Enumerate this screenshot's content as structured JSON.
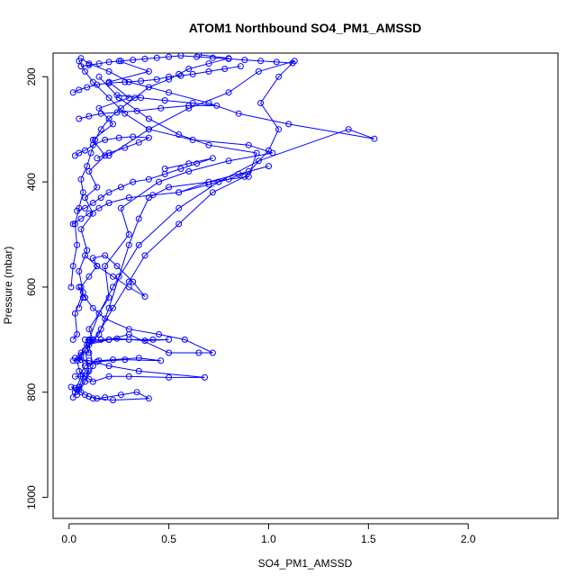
{
  "chart_data": {
    "type": "line",
    "title": "ATOM1 Northbound SO4_PM1_AMSSD",
    "xlabel": "SO4_PM1_AMSSD",
    "ylabel": "Pressure (mbar)",
    "xlim": [
      -0.08,
      2.45
    ],
    "ylim": [
      1040,
      155
    ],
    "y_inverted": true,
    "x_ticks": [
      "0.0",
      "0.5",
      "1.0",
      "1.5",
      "2.0"
    ],
    "x_tick_values": [
      0,
      0.5,
      1.0,
      1.5,
      2.0
    ],
    "y_ticks": [
      "200",
      "400",
      "600",
      "800",
      "1000"
    ],
    "y_tick_values": [
      200,
      400,
      600,
      800,
      1000
    ],
    "grid": false,
    "color": "#0000ff",
    "marker": "open-circle",
    "series": [
      {
        "x": [
          0.02,
          0.05,
          0.08,
          0.06,
          0.12,
          0.1,
          0.2,
          0.18,
          0.3,
          0.26,
          0.45,
          0.6,
          0.8,
          1.02,
          0.9,
          0.62,
          0.4,
          0.28,
          0.2,
          0.12,
          0.08,
          0.05
        ],
        "y": [
          810,
          790,
          760,
          730,
          700,
          680,
          620,
          560,
          500,
          450,
          400,
          380,
          360,
          345,
          330,
          320,
          300,
          270,
          240,
          210,
          190,
          170
        ]
      },
      {
        "x": [
          0.03,
          0.06,
          0.04,
          0.1,
          0.15,
          0.22,
          0.35,
          0.55,
          0.75,
          0.95,
          1.4,
          1.53,
          1.1,
          0.85,
          0.7,
          0.5,
          0.3,
          0.2,
          0.1,
          0.06
        ],
        "y": [
          800,
          770,
          740,
          700,
          650,
          600,
          520,
          450,
          400,
          360,
          300,
          318,
          290,
          270,
          250,
          230,
          210,
          190,
          175,
          165
        ]
      },
      {
        "x": [
          0.05,
          0.1,
          0.08,
          0.15,
          0.2,
          0.25,
          0.3,
          0.35,
          0.4,
          0.5,
          0.9,
          0.94,
          0.7,
          0.55,
          0.4,
          0.25,
          0.15
        ],
        "y": [
          795,
          760,
          720,
          690,
          640,
          580,
          520,
          470,
          430,
          410,
          390,
          345,
          330,
          310,
          280,
          240,
          200
        ]
      },
      {
        "x": [
          0.04,
          0.08,
          0.12,
          0.1,
          0.16,
          0.22,
          0.3,
          0.38,
          0.55,
          0.72,
          0.88,
          1.0,
          1.05,
          0.96,
          1.05,
          1.13,
          0.95,
          0.8,
          0.6,
          0.4,
          0.2
        ],
        "y": [
          805,
          780,
          750,
          710,
          680,
          640,
          590,
          540,
          480,
          420,
          390,
          340,
          300,
          250,
          200,
          170,
          190,
          230,
          260,
          300,
          350
        ]
      },
      {
        "x": [
          0.02,
          0.04,
          0.03,
          0.07,
          0.05,
          0.09,
          0.06,
          0.12,
          0.08,
          0.14,
          0.1,
          0.18,
          0.12,
          0.22,
          0.15,
          0.3,
          0.2,
          0.4,
          0.25
        ],
        "y": [
          700,
          690,
          650,
          610,
          570,
          530,
          490,
          460,
          430,
          410,
          380,
          350,
          320,
          290,
          260,
          240,
          210,
          190,
          170
        ]
      },
      {
        "x": [
          0.06,
          0.1,
          0.09,
          0.2,
          0.3,
          0.5,
          0.65,
          0.72,
          0.58,
          0.45,
          0.3,
          0.18,
          0.12,
          0.08,
          0.05
        ],
        "y": [
          725,
          725,
          710,
          700,
          690,
          725,
          725,
          725,
          700,
          690,
          680,
          660,
          640,
          620,
          600
        ]
      },
      {
        "x": [
          0.03,
          0.08,
          0.05,
          0.1,
          0.12,
          0.2,
          0.3,
          0.5,
          0.68,
          0.35,
          0.2,
          0.1
        ],
        "y": [
          770,
          770,
          760,
          775,
          780,
          770,
          770,
          772,
          772,
          760,
          750,
          740
        ]
      },
      {
        "x": [
          0.01,
          0.03,
          0.05,
          0.04,
          0.06,
          0.08,
          0.1,
          0.14,
          0.18,
          0.26,
          0.34,
          0.4,
          0.22,
          0.12
        ],
        "y": [
          790,
          792,
          790,
          795,
          800,
          805,
          808,
          812,
          810,
          805,
          800,
          812,
          815,
          812
        ]
      },
      {
        "x": [
          0.02,
          0.05,
          0.1,
          0.08,
          0.15,
          0.22,
          0.35,
          0.46,
          0.28,
          0.14,
          0.06,
          0.03
        ],
        "y": [
          740,
          735,
          745,
          750,
          740,
          738,
          735,
          740,
          738,
          742,
          738,
          735
        ]
      },
      {
        "x": [
          0.08,
          0.12,
          0.1,
          0.2,
          0.3,
          0.42,
          0.5,
          0.38,
          0.24,
          0.16,
          0.1
        ],
        "y": [
          700,
          700,
          705,
          700,
          700,
          700,
          700,
          702,
          698,
          700,
          702
        ]
      },
      {
        "x": [
          0.01,
          0.02,
          0.04,
          0.03,
          0.05,
          0.07,
          0.06,
          0.09,
          0.11,
          0.13,
          0.16,
          0.2,
          0.26,
          0.33,
          0.4,
          0.5,
          0.55,
          0.6,
          0.7,
          0.8,
          0.65
        ],
        "y": [
          600,
          560,
          520,
          480,
          450,
          420,
          395,
          370,
          345,
          320,
          300,
          280,
          260,
          240,
          220,
          205,
          195,
          185,
          175,
          165,
          158
        ]
      },
      {
        "x": [
          0.05,
          0.07,
          0.06,
          0.1,
          0.14,
          0.12,
          0.18,
          0.24,
          0.32,
          0.38,
          0.3,
          0.22,
          0.14,
          0.08
        ],
        "y": [
          640,
          620,
          600,
          580,
          560,
          545,
          540,
          560,
          590,
          618,
          600,
          580,
          560,
          540
        ]
      },
      {
        "x": [
          0.02,
          0.06,
          0.1,
          0.15,
          0.2,
          0.3,
          0.42,
          0.55,
          0.7,
          0.8,
          0.9,
          1.0,
          0.85,
          0.7,
          0.55
        ],
        "y": [
          480,
          470,
          460,
          450,
          440,
          430,
          425,
          420,
          405,
          395,
          380,
          370,
          385,
          400,
          420
        ]
      },
      {
        "x": [
          0.04,
          0.08,
          0.12,
          0.16,
          0.2,
          0.26,
          0.32,
          0.4,
          0.48,
          0.56,
          0.64,
          0.72,
          0.6,
          0.48
        ],
        "y": [
          455,
          450,
          440,
          430,
          420,
          410,
          400,
          395,
          385,
          375,
          365,
          355,
          365,
          375
        ]
      },
      {
        "x": [
          0.03,
          0.05,
          0.08,
          0.12,
          0.18,
          0.25,
          0.32,
          0.4,
          0.35,
          0.28,
          0.2,
          0.14
        ],
        "y": [
          350,
          345,
          340,
          330,
          320,
          316,
          314,
          316,
          325,
          335,
          345,
          355
        ]
      },
      {
        "x": [
          0.05,
          0.1,
          0.16,
          0.24,
          0.34,
          0.46,
          0.6,
          0.74,
          0.62,
          0.48,
          0.36,
          0.24
        ],
        "y": [
          280,
          275,
          270,
          268,
          265,
          260,
          255,
          255,
          250,
          245,
          240,
          235
        ]
      },
      {
        "x": [
          0.02,
          0.05,
          0.09,
          0.14,
          0.2,
          0.28,
          0.36,
          0.44,
          0.5,
          0.56,
          0.62,
          0.7,
          0.78,
          0.86
        ],
        "y": [
          230,
          225,
          220,
          215,
          212,
          210,
          208,
          205,
          200,
          198,
          195,
          190,
          185,
          180
        ]
      },
      {
        "x": [
          0.06,
          0.1,
          0.15,
          0.2,
          0.26,
          0.32,
          0.38,
          0.44,
          0.5,
          0.56,
          0.64,
          0.72,
          0.8,
          0.88,
          0.96,
          1.04,
          1.12
        ],
        "y": [
          180,
          178,
          175,
          172,
          170,
          168,
          166,
          164,
          162,
          160,
          162,
          164,
          166,
          168,
          170,
          172,
          174
        ]
      }
    ]
  }
}
